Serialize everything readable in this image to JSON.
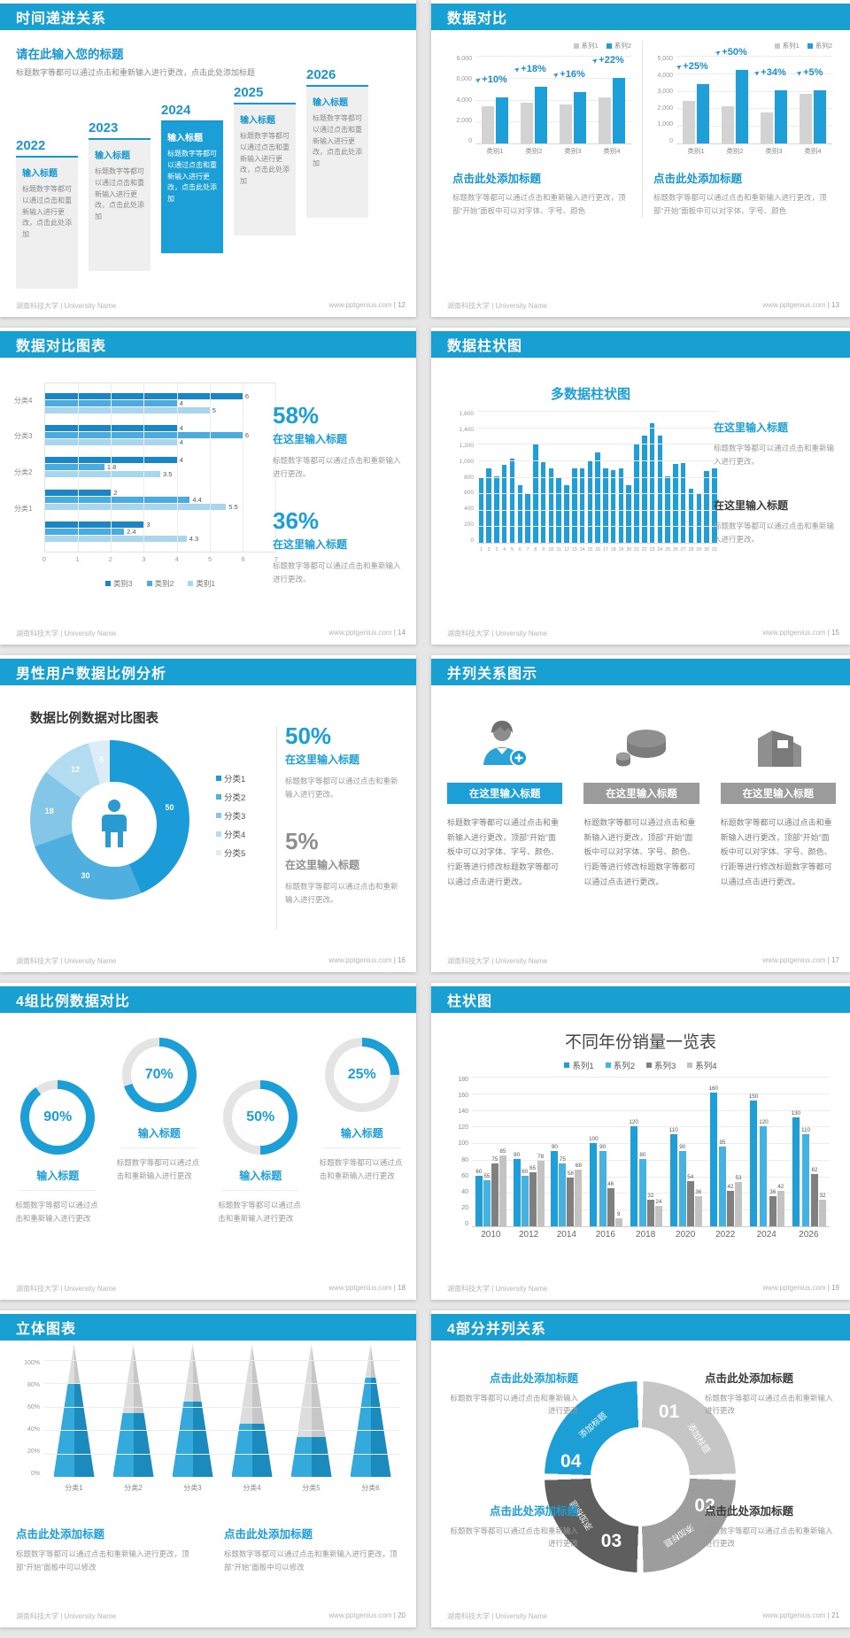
{
  "colors": {
    "header_blue": "#18a0d2",
    "accent_blue": "#1797d0",
    "bar_blue": "#1f9fd8",
    "bar_gray": "#d3d3d3",
    "dark_blue": "#1a86c7",
    "mid_blue": "#4aabdf",
    "light_blue": "#a7d6ee",
    "dark_gray": "#808080",
    "light_gray": "#c3c3c3"
  },
  "footer": {
    "university": "湖南科技大学 | University Name",
    "site": "www.pptgenius.com"
  },
  "slides": {
    "timeline": {
      "header": "时间递进关系",
      "page": "12",
      "heading": "请在此输入您的标题",
      "intro": "标题数字等都可以通过点击和重新输入进行更改，点击此处添加标题",
      "years": [
        "2022",
        "2023",
        "2024",
        "2025",
        "2026"
      ],
      "highlight_index": 2,
      "card_title": "输入标题",
      "card_body": "标题数字等都可以通过点击和重新输入进行更改，点击此处添加"
    },
    "compare": {
      "header": "数据对比",
      "page": "13",
      "heading": "点击此处添加标题",
      "body": "标题数字等都可以通过点击和重新输入进行更改，顶部“开始”面板中可以对字体、字号、颜色",
      "charts": [
        {
          "type": "bar",
          "ymax": 8000,
          "yticks": [
            "8,000",
            "6,000",
            "4,000",
            "2,000",
            "0"
          ],
          "categories": [
            "类别1",
            "类别2",
            "类别3",
            "类别4"
          ],
          "series": [
            {
              "name": "系列1",
              "values": [
                3500,
                3800,
                3700,
                4300
              ]
            },
            {
              "name": "系列2",
              "values": [
                4300,
                5300,
                4800,
                6200
              ]
            }
          ],
          "callouts": [
            "+10%",
            "+18%",
            "+16%",
            "+22%"
          ]
        },
        {
          "type": "bar",
          "ymax": 5000,
          "yticks": [
            "5,000",
            "4,000",
            "3,000",
            "2,000",
            "1,000",
            "0"
          ],
          "categories": [
            "类别1",
            "类别2",
            "类别3",
            "类别4"
          ],
          "series": [
            {
              "name": "系列1",
              "values": [
                2500,
                2200,
                1800,
                2900
              ]
            },
            {
              "name": "系列2",
              "values": [
                3500,
                4300,
                3100,
                3100
              ]
            }
          ],
          "callouts": [
            "+25%",
            "+50%",
            "+34%",
            "+5%"
          ]
        }
      ]
    },
    "hbar": {
      "header": "数据对比图表",
      "page": "14",
      "type": "bar-horizontal",
      "xmax": 7,
      "xticks": [
        "0",
        "1",
        "2",
        "3",
        "4",
        "5",
        "6",
        "7"
      ],
      "legend": [
        "类别3",
        "类别2",
        "类别1"
      ],
      "groups": [
        {
          "label": "分类4",
          "values": [
            6,
            4,
            5
          ]
        },
        {
          "label": "分类3",
          "values": [
            4,
            6,
            4
          ]
        },
        {
          "label": "分类2",
          "values": [
            4,
            1.8,
            3.5
          ]
        },
        {
          "label": "分类1",
          "values": [
            2,
            4.4,
            5.5
          ]
        },
        {
          "label": "",
          "values": [
            3,
            2.4,
            4.3
          ]
        }
      ],
      "stats": [
        {
          "value": "58%",
          "title": "在这里输入标题",
          "body": "标题数字等都可以通过点击和重新输入进行更改。"
        },
        {
          "value": "36%",
          "title": "在这里输入标题",
          "body": "标题数字等都可以通过点击和重新输入进行更改。"
        }
      ]
    },
    "multi_column": {
      "header": "数据柱状图",
      "page": "15",
      "type": "bar",
      "chart_title": "多数据柱状图",
      "ymax": 1600,
      "yticks": [
        "1,600",
        "1,400",
        "1,200",
        "1,000",
        "800",
        "600",
        "400",
        "200",
        "0"
      ],
      "values": [
        800,
        900,
        810,
        950,
        1020,
        700,
        600,
        1200,
        980,
        900,
        780,
        700,
        900,
        900,
        1000,
        1100,
        900,
        880,
        900,
        700,
        1200,
        1300,
        1450,
        1300,
        810,
        960,
        970,
        660,
        590,
        870,
        900
      ],
      "notes": [
        {
          "title": "在这里输入标题",
          "body": "标题数字等都可以通过点击和重新输入进行更改。"
        },
        {
          "title": "在这里输入标题",
          "body": "标题数字等都可以通过点击和重新输入进行更改。"
        }
      ]
    },
    "donut": {
      "header": "男性用户数据比例分析",
      "page": "16",
      "type": "pie",
      "chart_title": "数据比例数据对比图表",
      "values": [
        50,
        30,
        18,
        12,
        5
      ],
      "legend": [
        "分类1",
        "分类2",
        "分类3",
        "分类4",
        "分类5"
      ],
      "colors": [
        "#1b9cd8",
        "#4fb0df",
        "#84c6e7",
        "#b4dcf0",
        "#dcedf8"
      ],
      "stats": [
        {
          "value": "50%",
          "title": "在这里输入标题",
          "body": "标题数字等都可以通过点击和重新输入进行更改。"
        },
        {
          "value": "5%",
          "title": "在这里输入标题",
          "body": "标题数字等都可以通过点击和重新输入进行更改。"
        }
      ]
    },
    "trio": {
      "header": "并列关系图示",
      "page": "17",
      "items": [
        {
          "icon": "person-plus-icon",
          "title": "在这里输入标题",
          "body": "标题数字等都可以通过点击和重新输入进行更改，顶部“开始”面板中可以对字体、字号、颜色、行距等进行修改标题数字等都可以通过点击进行更改。"
        },
        {
          "icon": "pie-3d-icon",
          "title": "在这里输入标题",
          "body": "标题数字等都可以通过点击和重新输入进行更改，顶部“开始”面板中可以对字体、字号、颜色、行距等进行修改标题数字等都可以通过点击进行更改。"
        },
        {
          "icon": "building-icon",
          "title": "在这里输入标题",
          "body": "标题数字等都可以通过点击和重新输入进行更改，顶部“开始”面板中可以对字体、字号、颜色、行距等进行修改标题数字等都可以通过点击进行更改。"
        }
      ]
    },
    "rings": {
      "header": "4组比例数据对比",
      "page": "18",
      "item_title": "输入标题",
      "items": [
        {
          "pct": 90,
          "raised": false,
          "body": "标题数字等都可以通过点击和重新输入进行更改"
        },
        {
          "pct": 70,
          "raised": true,
          "body": "标题数字等都可以通过点击和重新输入进行更改"
        },
        {
          "pct": 50,
          "raised": false,
          "body": "标题数字等都可以通过点击和重新输入进行更改"
        },
        {
          "pct": 25,
          "raised": true,
          "body": "标题数字等都可以通过点击和重新输入进行更改"
        }
      ]
    },
    "year_sales": {
      "header": "柱状图",
      "page": "19",
      "type": "bar",
      "chart_title": "不同年份销量一览表",
      "ymax": 180,
      "yticks": [
        "180",
        "160",
        "140",
        "120",
        "100",
        "80",
        "60",
        "40",
        "20",
        "0"
      ],
      "categories": [
        "2010",
        "2012",
        "2014",
        "2016",
        "2018",
        "2020",
        "2022",
        "2024",
        "2026"
      ],
      "series": [
        {
          "name": "系列1",
          "color": "#1f9fd8",
          "values": [
            60,
            80,
            90,
            100,
            120,
            110,
            160,
            150,
            130
          ]
        },
        {
          "name": "系列2",
          "color": "#45b2e2",
          "values": [
            55,
            60,
            75,
            90,
            80,
            90,
            95,
            120,
            110
          ]
        },
        {
          "name": "系列3",
          "color": "#808080",
          "values": [
            75,
            65,
            58,
            46,
            32,
            54,
            42,
            36,
            62
          ]
        },
        {
          "name": "系列4",
          "color": "#c3c3c3",
          "values": [
            85,
            78,
            68,
            9,
            24,
            36,
            53,
            42,
            32
          ]
        }
      ]
    },
    "pyramid": {
      "header": "立体图表",
      "page": "20",
      "type": "bar",
      "yticks": [
        "100%",
        "80%",
        "60%",
        "40%",
        "20%",
        "0%"
      ],
      "categories": [
        "分类1",
        "分类2",
        "分类3",
        "分类4",
        "分类5",
        "分类6"
      ],
      "values": [
        70,
        48,
        57,
        40,
        30,
        75
      ],
      "notes": [
        {
          "title": "点击此处添加标题",
          "body": "标题数字等都可以通过点击和重新输入进行更改，顶部“开始”面板中可以修改"
        },
        {
          "title": "点击此处添加标题",
          "body": "标题数字等都可以通过点击和重新输入进行更改，顶部“开始”面板中可以修改"
        }
      ]
    },
    "quad": {
      "header": "4部分并列关系",
      "page": "21",
      "segment_label": "添加标题",
      "segments": [
        {
          "number": "01",
          "color": "#c6c6c6"
        },
        {
          "number": "02",
          "color": "#9d9d9d"
        },
        {
          "number": "03",
          "color": "#5e5e5e"
        },
        {
          "number": "04",
          "color": "#1b9fd6"
        }
      ],
      "blocks": [
        {
          "pos": "top-left",
          "title": "点击此处添加标题",
          "body": "标题数字等都可以通过点击和重新输入进行更改"
        },
        {
          "pos": "top-right",
          "title": "点击此处添加标题",
          "body": "标题数字等都可以通过点击和重新输入进行更改"
        },
        {
          "pos": "bottom-left",
          "title": "点击此处添加标题",
          "body": "标题数字等都可以通过点击和重新输入进行更改"
        },
        {
          "pos": "bottom-right",
          "title": "点击此处添加标题",
          "body": "标题数字等都可以通过点击和重新输入进行更改"
        }
      ]
    }
  }
}
